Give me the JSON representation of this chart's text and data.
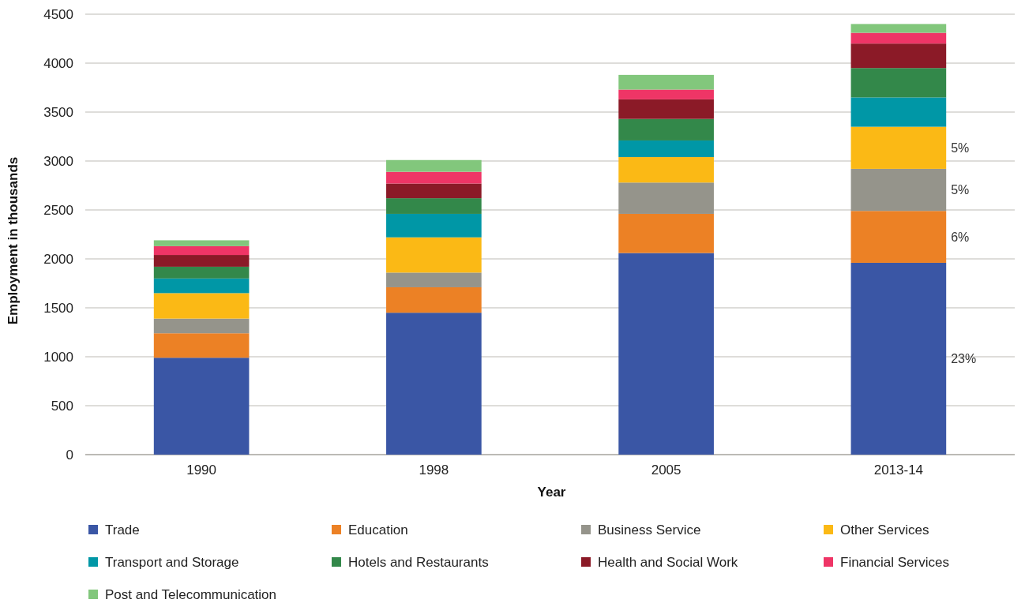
{
  "chart_data": {
    "type": "bar",
    "stacked": true,
    "xlabel": "Year",
    "ylabel": "Employment in thousands",
    "categories": [
      "1990",
      "1998",
      "2005",
      "2013-14"
    ],
    "series": [
      {
        "name": "Trade",
        "color": "#3a56a5",
        "values": [
          990,
          1450,
          2060,
          1960
        ]
      },
      {
        "name": "Education",
        "color": "#ec8125",
        "values": [
          250,
          260,
          400,
          530
        ]
      },
      {
        "name": "Business Service",
        "color": "#95948b",
        "values": [
          150,
          150,
          320,
          430
        ]
      },
      {
        "name": "Other Services",
        "color": "#fbb915",
        "values": [
          260,
          360,
          260,
          430
        ]
      },
      {
        "name": "Transport and Storage",
        "color": "#0097a6",
        "values": [
          150,
          240,
          170,
          300
        ]
      },
      {
        "name": "Hotels and Restaurants",
        "color": "#33884a",
        "values": [
          120,
          160,
          220,
          300
        ]
      },
      {
        "name": "Health and Social Work",
        "color": "#8b1a27",
        "values": [
          120,
          150,
          200,
          250
        ]
      },
      {
        "name": "Financial Services",
        "color": "#ef3566",
        "values": [
          90,
          120,
          100,
          110
        ]
      },
      {
        "name": "Post and Telecommunication",
        "color": "#82c77c",
        "values": [
          60,
          120,
          150,
          90
        ]
      }
    ],
    "ylim": [
      0,
      4500
    ],
    "yticks": [
      0,
      500,
      1000,
      1500,
      2000,
      2500,
      3000,
      3500,
      4000,
      4500
    ],
    "grid": "y",
    "legend": "bottom",
    "annotations": [
      "23%",
      "6%",
      "5%",
      "5%"
    ]
  }
}
